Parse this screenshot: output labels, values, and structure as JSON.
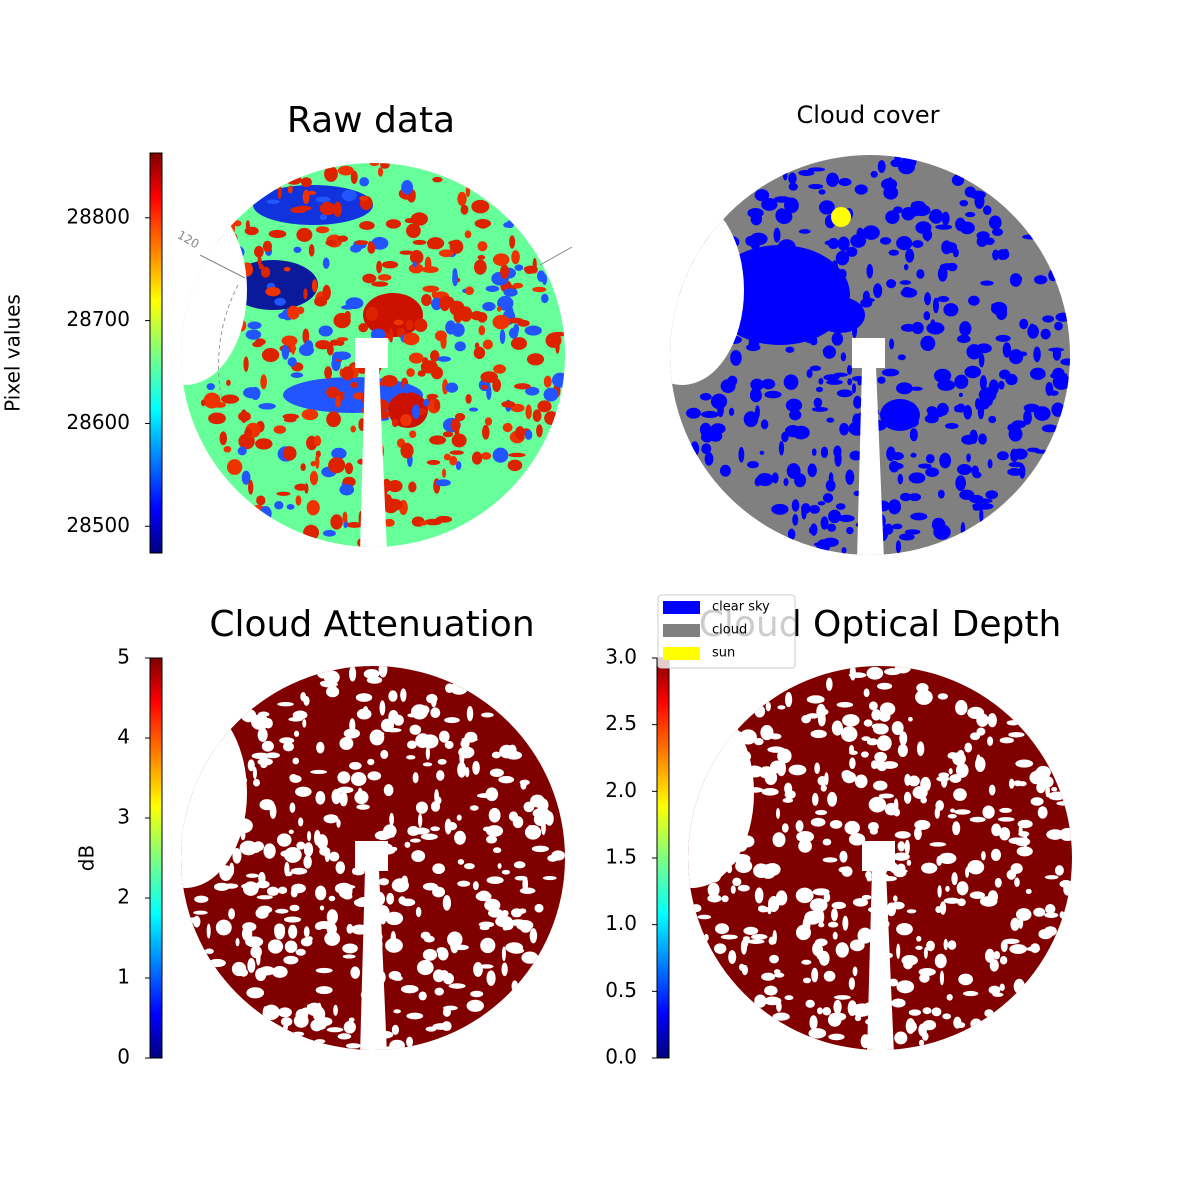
{
  "chart_data": [
    {
      "type": "image",
      "title": "Raw data",
      "colormap": "jet",
      "colorbar_label": "Pixel values",
      "ylim": [
        28474,
        28863
      ],
      "yticks": [
        28500,
        28600,
        28700,
        28800
      ],
      "annotation": "120"
    },
    {
      "type": "image",
      "title": "Cloud cover",
      "legend": [
        {
          "label": "clear sky",
          "color": "#0000ff"
        },
        {
          "label": "cloud",
          "color": "#808080"
        },
        {
          "label": "sun",
          "color": "#ffff00"
        }
      ]
    },
    {
      "type": "image",
      "title": "Cloud Attenuation",
      "colormap": "jet",
      "colorbar_label": "dB",
      "ylim": [
        0,
        5
      ],
      "yticks": [
        0,
        1,
        2,
        3,
        4,
        5
      ]
    },
    {
      "type": "image",
      "title": "Cloud Optical Depth",
      "colormap": "jet",
      "ylim": [
        0,
        3
      ],
      "yticks": [
        {
          "value": 0,
          "label": "0.0"
        },
        {
          "value": 0.5,
          "label": "0.5"
        },
        {
          "value": 1,
          "label": "1.0"
        },
        {
          "value": 1.5,
          "label": "1.5"
        },
        {
          "value": 2,
          "label": "2.0"
        },
        {
          "value": 2.5,
          "label": "2.5"
        },
        {
          "value": 3,
          "label": "3.0"
        }
      ]
    }
  ]
}
